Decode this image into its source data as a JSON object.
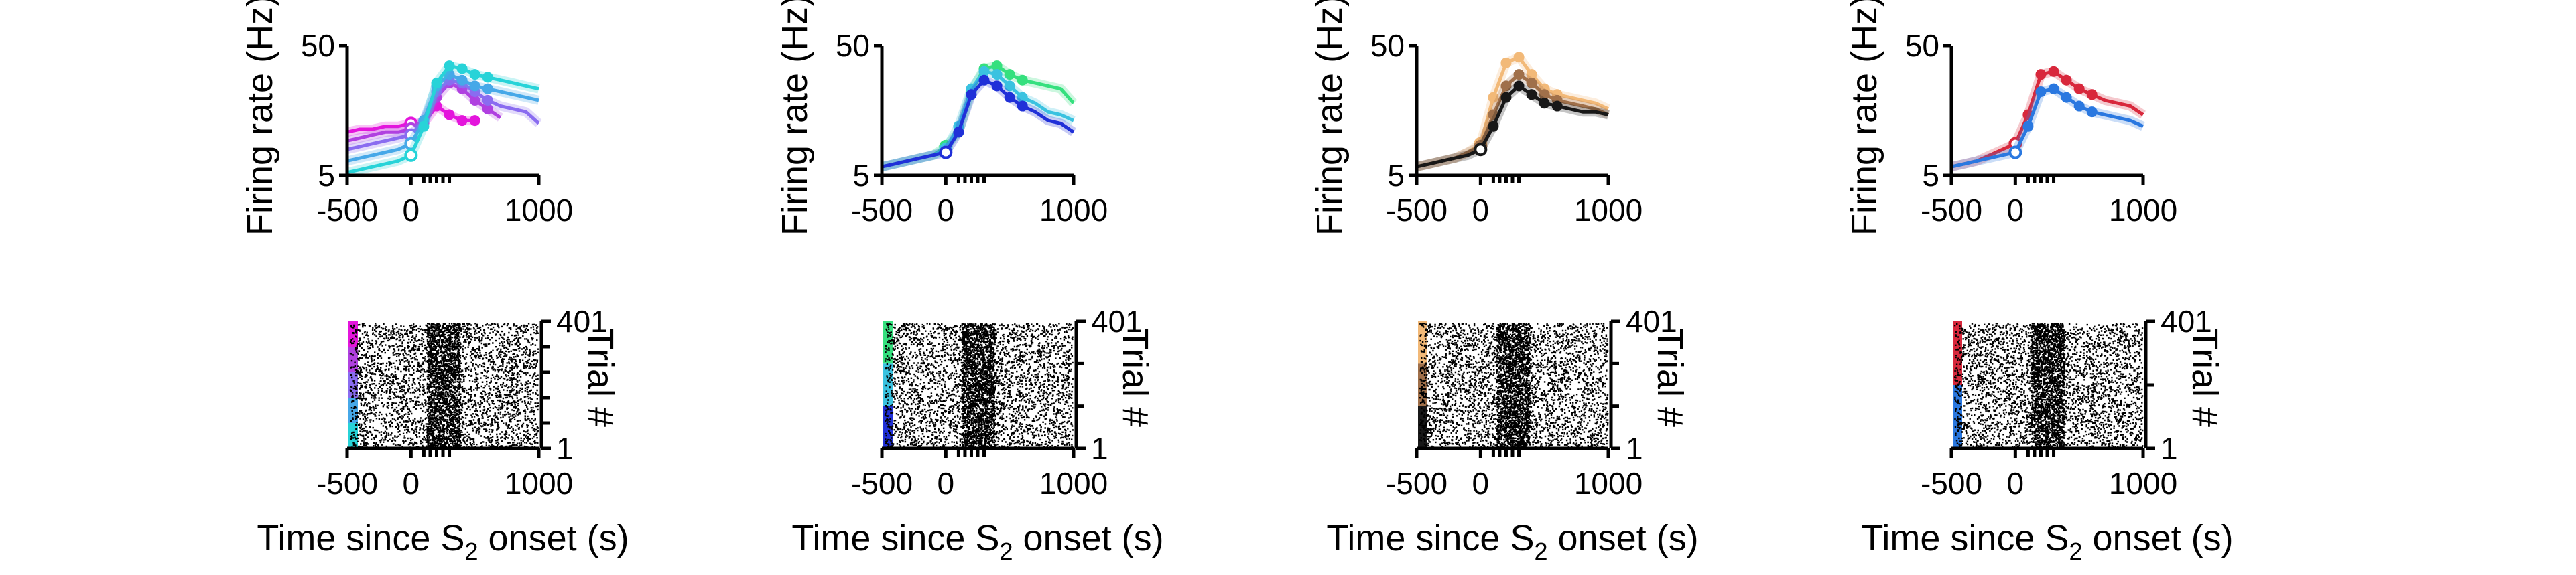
{
  "chart_data": [
    {
      "type": "line",
      "ylabel": "Firing rate (Hz)",
      "xticks": [
        "-500",
        "0",
        "1000"
      ],
      "yticks": [
        "5",
        "50"
      ],
      "xlim": [
        -500,
        1000
      ],
      "ylim": [
        5,
        50
      ],
      "series": [
        {
          "color": "#e415dc",
          "x": [
            -500,
            -400,
            -300,
            -200,
            -100,
            0,
            100,
            200,
            300,
            400,
            500
          ],
          "y": [
            20,
            21,
            21,
            22,
            22,
            23,
            23,
            29,
            26,
            24,
            24
          ]
        },
        {
          "color": "#b040e0",
          "x": [
            -500,
            -400,
            -300,
            -200,
            -100,
            0,
            100,
            200,
            300,
            400,
            500,
            600,
            700
          ],
          "y": [
            17,
            18,
            19,
            20,
            20,
            21,
            24,
            32,
            37,
            35,
            31,
            28,
            25
          ]
        },
        {
          "color": "#8a6cf0",
          "x": [
            -500,
            -400,
            -300,
            -200,
            -100,
            0,
            100,
            200,
            300,
            400,
            500,
            600,
            700,
            800,
            900,
            1000
          ],
          "y": [
            14,
            15,
            16,
            17,
            18,
            19,
            24,
            34,
            38,
            37,
            34,
            31,
            29,
            28,
            27,
            23
          ]
        },
        {
          "color": "#46a8e8",
          "x": [
            -500,
            -400,
            -300,
            -200,
            -100,
            0,
            100,
            200,
            300,
            400,
            500,
            600,
            700,
            800,
            900,
            1000
          ],
          "y": [
            10,
            11,
            12,
            13,
            14,
            16,
            24,
            36,
            40,
            38,
            36,
            35,
            34,
            33,
            32,
            31
          ]
        },
        {
          "color": "#27d3d8",
          "x": [
            -500,
            -400,
            -300,
            -200,
            -100,
            0,
            100,
            200,
            300,
            400,
            500,
            600,
            700,
            800,
            900,
            1000
          ],
          "y": [
            6,
            7,
            8,
            9,
            10,
            12,
            22,
            37,
            43,
            42,
            40,
            39,
            38,
            37,
            36,
            35
          ]
        }
      ],
      "raster": {
        "ylabel": "Trial #",
        "xlabel": "Time since S",
        "xlabel_sub": "2",
        "xlabel_tail": " onset (s)",
        "yticks": [
          "1",
          "401"
        ],
        "trials": 401,
        "groups": [
          "#e415dc",
          "#b040e0",
          "#8a6cf0",
          "#46a8e8",
          "#27d3d8"
        ]
      }
    },
    {
      "type": "line",
      "ylabel": "Firing rate (Hz)",
      "xticks": [
        "-500",
        "0",
        "1000"
      ],
      "yticks": [
        "5",
        "50"
      ],
      "xlim": [
        -500,
        1000
      ],
      "ylim": [
        5,
        50
      ],
      "series": [
        {
          "color": "#35e07e",
          "x": [
            -500,
            -400,
            -300,
            -200,
            -100,
            0,
            100,
            200,
            300,
            400,
            500,
            600,
            700,
            800,
            900,
            1000
          ],
          "y": [
            8,
            9,
            10,
            11,
            12,
            15,
            20,
            34,
            42,
            43,
            40,
            38,
            37,
            36,
            35,
            30
          ]
        },
        {
          "color": "#3ac2e0",
          "x": [
            -500,
            -400,
            -300,
            -200,
            -100,
            0,
            100,
            200,
            300,
            400,
            500,
            600,
            700,
            800,
            900,
            1000
          ],
          "y": [
            8,
            9,
            10,
            11,
            12,
            14,
            22,
            35,
            41,
            40,
            36,
            32,
            30,
            27,
            26,
            24
          ]
        },
        {
          "color": "#2030d8",
          "x": [
            -500,
            -400,
            -300,
            -200,
            -100,
            0,
            100,
            200,
            300,
            400,
            500,
            600,
            700,
            800,
            900,
            1000
          ],
          "y": [
            8,
            9,
            10,
            11,
            12,
            13,
            20,
            33,
            38,
            36,
            32,
            29,
            27,
            24,
            23,
            20
          ]
        }
      ],
      "raster": {
        "ylabel": "Trial #",
        "xlabel": "Time since S",
        "xlabel_sub": "2",
        "xlabel_tail": " onset (s)",
        "yticks": [
          "1",
          "401"
        ],
        "trials": 401,
        "groups": [
          "#35e07e",
          "#3ac2e0",
          "#2030d8"
        ]
      }
    },
    {
      "type": "line",
      "ylabel": "Firing rate (Hz)",
      "xticks": [
        "-500",
        "0",
        "1000"
      ],
      "yticks": [
        "5",
        "50"
      ],
      "xlim": [
        -500,
        1000
      ],
      "ylim": [
        5,
        50
      ],
      "series": [
        {
          "color": "#f2b978",
          "x": [
            -500,
            -400,
            -300,
            -200,
            -100,
            0,
            100,
            200,
            300,
            400,
            500,
            600,
            700,
            800,
            900,
            1000
          ],
          "y": [
            8,
            9,
            10,
            11,
            13,
            16,
            32,
            44,
            46,
            40,
            35,
            33,
            32,
            31,
            30,
            28
          ]
        },
        {
          "color": "#a0704a",
          "x": [
            -500,
            -400,
            -300,
            -200,
            -100,
            0,
            100,
            200,
            300,
            400,
            500,
            600,
            700,
            800,
            900,
            1000
          ],
          "y": [
            8,
            9,
            10,
            11,
            13,
            15,
            26,
            36,
            40,
            37,
            33,
            31,
            30,
            29,
            28,
            26
          ]
        },
        {
          "color": "#181818",
          "x": [
            -500,
            -400,
            -300,
            -200,
            -100,
            0,
            100,
            200,
            300,
            400,
            500,
            600,
            700,
            800,
            900,
            1000
          ],
          "y": [
            8,
            9,
            10,
            11,
            12,
            14,
            22,
            32,
            36,
            33,
            30,
            29,
            28,
            27,
            27,
            26
          ]
        }
      ],
      "raster": {
        "ylabel": "Trial #",
        "xlabel": "Time since S",
        "xlabel_sub": "2",
        "xlabel_tail": " onset (s)",
        "yticks": [
          "1",
          "401"
        ],
        "trials": 401,
        "groups": [
          "#f2b978",
          "#a0704a",
          "#181818"
        ]
      }
    },
    {
      "type": "line",
      "ylabel": "Firing rate (Hz)",
      "xticks": [
        "-500",
        "0",
        "1000"
      ],
      "yticks": [
        "5",
        "50"
      ],
      "xlim": [
        -500,
        1000
      ],
      "ylim": [
        5,
        50
      ],
      "series": [
        {
          "color": "#d8283c",
          "x": [
            -500,
            -400,
            -300,
            -200,
            -100,
            0,
            100,
            200,
            300,
            400,
            500,
            600,
            700,
            800,
            900,
            1000
          ],
          "y": [
            8,
            9,
            10,
            12,
            14,
            16,
            26,
            40,
            41,
            38,
            35,
            33,
            31,
            30,
            29,
            26
          ]
        },
        {
          "color": "#2a78e0",
          "x": [
            -500,
            -400,
            -300,
            -200,
            -100,
            0,
            100,
            200,
            300,
            400,
            500,
            600,
            700,
            800,
            900,
            1000
          ],
          "y": [
            8,
            9,
            10,
            11,
            12,
            13,
            22,
            34,
            35,
            32,
            29,
            27,
            26,
            25,
            24,
            22
          ]
        }
      ],
      "raster": {
        "ylabel": "Trial #",
        "xlabel": "Time since S",
        "xlabel_sub": "2",
        "xlabel_tail": " onset (s)",
        "yticks": [
          "1",
          "401"
        ],
        "trials": 401,
        "groups": [
          "#d8283c",
          "#2a78e0"
        ]
      }
    }
  ]
}
